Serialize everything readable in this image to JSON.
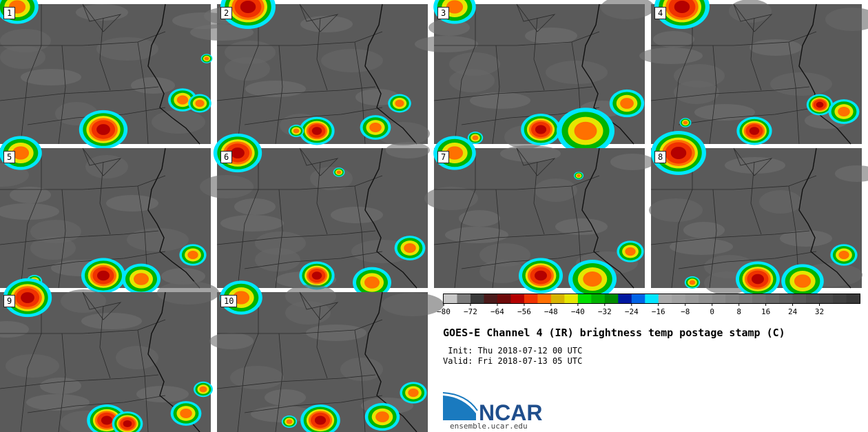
{
  "panels": [
    {
      "label": "1",
      "storms": [
        [
          150,
          188,
          22,
          1.0
        ],
        [
          265,
          145,
          15,
          0.7
        ],
        [
          290,
          150,
          12,
          0.6
        ],
        [
          25,
          10,
          22,
          0.9
        ],
        [
          300,
          85,
          6,
          0.5
        ]
      ]
    },
    {
      "label": "2",
      "storms": [
        [
          460,
          190,
          16,
          1.0
        ],
        [
          545,
          185,
          16,
          0.7
        ],
        [
          580,
          150,
          12,
          0.6
        ],
        [
          360,
          10,
          25,
          1.0
        ],
        [
          430,
          190,
          8,
          0.6
        ]
      ]
    },
    {
      "label": "3",
      "storms": [
        [
          785,
          188,
          18,
          1.0
        ],
        [
          850,
          190,
          30,
          0.6
        ],
        [
          910,
          150,
          18,
          0.7
        ],
        [
          660,
          10,
          22,
          0.9
        ],
        [
          690,
          200,
          8,
          0.6
        ]
      ]
    },
    {
      "label": "4",
      "storms": [
        [
          1095,
          190,
          16,
          1.0
        ],
        [
          1190,
          152,
          12,
          1.0
        ],
        [
          1225,
          162,
          16,
          0.7
        ],
        [
          990,
          10,
          25,
          1.0
        ],
        [
          995,
          178,
          6,
          0.5
        ]
      ]
    },
    {
      "label": "5",
      "storms": [
        [
          150,
          400,
          20,
          1.0
        ],
        [
          205,
          405,
          20,
          0.7
        ],
        [
          280,
          370,
          14,
          0.6
        ],
        [
          30,
          222,
          22,
          0.9
        ],
        [
          50,
          408,
          8,
          0.6
        ]
      ]
    },
    {
      "label": "6",
      "storms": [
        [
          460,
          400,
          16,
          1.0
        ],
        [
          540,
          410,
          20,
          0.6
        ],
        [
          595,
          360,
          16,
          0.7
        ],
        [
          345,
          222,
          22,
          1.0
        ],
        [
          492,
          250,
          6,
          0.6
        ]
      ]
    },
    {
      "label": "7",
      "storms": [
        [
          785,
          400,
          20,
          1.0
        ],
        [
          860,
          405,
          25,
          0.7
        ],
        [
          915,
          365,
          14,
          0.6
        ],
        [
          660,
          222,
          22,
          0.9
        ],
        [
          840,
          255,
          5,
          0.6
        ]
      ]
    },
    {
      "label": "8",
      "storms": [
        [
          1100,
          405,
          20,
          1.0
        ],
        [
          1165,
          408,
          22,
          0.7
        ],
        [
          1225,
          370,
          14,
          0.7
        ],
        [
          985,
          222,
          25,
          1.0
        ],
        [
          1005,
          410,
          8,
          0.6
        ]
      ]
    },
    {
      "label": "9",
      "storms": [
        [
          155,
          610,
          18,
          1.0
        ],
        [
          185,
          615,
          14,
          1.0
        ],
        [
          270,
          600,
          16,
          0.6
        ],
        [
          40,
          432,
          22,
          1.0
        ],
        [
          295,
          565,
          10,
          0.6
        ]
      ]
    },
    {
      "label": "10",
      "storms": [
        [
          465,
          610,
          18,
          1.0
        ],
        [
          555,
          605,
          18,
          0.7
        ],
        [
          600,
          570,
          14,
          0.6
        ],
        [
          350,
          432,
          22,
          0.9
        ],
        [
          420,
          612,
          8,
          0.6
        ]
      ]
    }
  ],
  "colorbar": {
    "colors": [
      "#c8c8c8",
      "#7a7a7a",
      "#3a3a3a",
      "#4a1a1a",
      "#6e0a0a",
      "#b40000",
      "#f03200",
      "#ff7000",
      "#d8b400",
      "#e6e600",
      "#00e000",
      "#00b400",
      "#008c00",
      "#0018a0",
      "#0064e6",
      "#00e6ff",
      "#a8a8a8",
      "#a0a0a0",
      "#989898",
      "#909090",
      "#888888",
      "#808080",
      "#787878",
      "#707070",
      "#686868",
      "#606060",
      "#585858",
      "#505050",
      "#484848",
      "#404040",
      "#383838"
    ],
    "ticks": [
      "−80",
      "−72",
      "−64",
      "−56",
      "−48",
      "−40",
      "−32",
      "−24",
      "−16",
      "−8",
      "0",
      "8",
      "16",
      "24",
      "32"
    ]
  },
  "chart_data": {
    "type": "heatmap",
    "title": "GOES-E Channel 4 (IR) brightness temp postage stamp (C)",
    "panel_labels": [
      "1",
      "2",
      "3",
      "4",
      "5",
      "6",
      "7",
      "8",
      "9",
      "10"
    ],
    "colorbar_range": [
      -80,
      40
    ],
    "colorbar_ticks": [
      -80,
      -72,
      -64,
      -56,
      -48,
      -40,
      -32,
      -24,
      -16,
      -8,
      0,
      8,
      16,
      24,
      32
    ]
  },
  "init_line": " Init: Thu 2018-07-12 00 UTC",
  "valid_line": "Valid: Fri 2018-07-13 05 UTC",
  "logo": {
    "text": "NCAR",
    "colors": {
      "swoosh": "#1a7abf",
      "text": "#1f4e8c"
    }
  },
  "site": "ensemble.ucar.edu"
}
